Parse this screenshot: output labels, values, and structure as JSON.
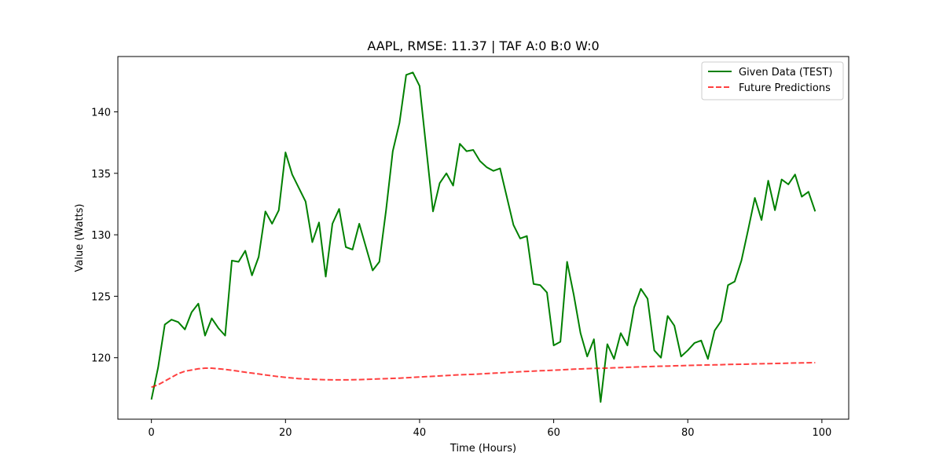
{
  "chart_data": {
    "type": "line",
    "title": "AAPL, RMSE: 11.37 | TAF A:0 B:0 W:0",
    "xlabel": "Time (Hours)",
    "ylabel": "Value (Watts)",
    "xlim": [
      -5,
      104
    ],
    "ylim": [
      115,
      144.5
    ],
    "x_ticks": [
      0,
      20,
      40,
      60,
      80,
      100
    ],
    "y_ticks": [
      120,
      125,
      130,
      135,
      140
    ],
    "grid": false,
    "legend_position": "top-right",
    "series": [
      {
        "name": "Given Data (TEST)",
        "color": "#008000",
        "style": "solid",
        "x": [
          0,
          1,
          2,
          3,
          4,
          5,
          6,
          7,
          8,
          9,
          10,
          11,
          12,
          13,
          14,
          15,
          16,
          17,
          18,
          19,
          20,
          21,
          22,
          23,
          24,
          25,
          26,
          27,
          28,
          29,
          30,
          31,
          32,
          33,
          34,
          35,
          36,
          37,
          38,
          39,
          40,
          41,
          42,
          43,
          44,
          45,
          46,
          47,
          48,
          49,
          50,
          51,
          52,
          53,
          54,
          55,
          56,
          57,
          58,
          59,
          60,
          61,
          62,
          63,
          64,
          65,
          66,
          67,
          68,
          69,
          70,
          71,
          72,
          73,
          74,
          75,
          76,
          77,
          78,
          79,
          80,
          81,
          82,
          83,
          84,
          85,
          86,
          87,
          88,
          89,
          90,
          91,
          92,
          93,
          94,
          95,
          96,
          97,
          98,
          99
        ],
        "values": [
          116.6,
          119.2,
          122.7,
          123.1,
          122.9,
          122.3,
          123.7,
          124.4,
          121.8,
          123.2,
          122.4,
          121.8,
          127.9,
          127.8,
          128.7,
          126.7,
          128.2,
          131.9,
          130.9,
          132.0,
          136.7,
          134.9,
          133.8,
          132.7,
          129.4,
          131.0,
          126.6,
          130.9,
          132.1,
          129.0,
          128.8,
          130.9,
          129.0,
          127.1,
          127.8,
          132.0,
          136.8,
          139.1,
          143.0,
          143.2,
          142.1,
          137.0,
          131.9,
          134.2,
          135.0,
          134.0,
          137.4,
          136.8,
          136.9,
          136.0,
          135.5,
          135.2,
          135.4,
          133.1,
          130.8,
          129.7,
          129.9,
          126.0,
          125.9,
          125.3,
          121.0,
          121.3,
          127.8,
          125.1,
          122.0,
          120.1,
          121.5,
          116.4,
          121.1,
          119.9,
          122.0,
          121.0,
          124.1,
          125.6,
          124.8,
          120.6,
          120.0,
          123.4,
          122.6,
          120.1,
          120.6,
          121.2,
          121.4,
          119.9,
          122.2,
          123.0,
          125.9,
          126.2,
          127.9,
          130.4,
          133.0,
          131.2,
          134.4,
          132.0,
          134.5,
          134.1,
          134.9,
          133.1,
          133.5,
          131.9
        ]
      },
      {
        "name": "Future Predictions",
        "color": "#ff0000",
        "style": "dashed",
        "x": [
          0,
          1,
          2,
          3,
          4,
          5,
          6,
          7,
          8,
          9,
          10,
          11,
          12,
          13,
          14,
          15,
          16,
          17,
          18,
          19,
          20,
          21,
          22,
          23,
          24,
          25,
          26,
          27,
          28,
          29,
          30,
          31,
          32,
          33,
          34,
          35,
          36,
          37,
          38,
          39,
          40,
          41,
          42,
          43,
          44,
          45,
          46,
          47,
          48,
          49,
          50,
          51,
          52,
          53,
          54,
          55,
          56,
          57,
          58,
          59,
          60,
          61,
          62,
          63,
          64,
          65,
          66,
          67,
          68,
          69,
          70,
          71,
          72,
          73,
          74,
          75,
          76,
          77,
          78,
          79,
          80,
          81,
          82,
          83,
          84,
          85,
          86,
          87,
          88,
          89,
          90,
          91,
          92,
          93,
          94,
          95,
          96,
          97,
          98,
          99
        ],
        "values": [
          117.6,
          117.8,
          118.1,
          118.4,
          118.7,
          118.9,
          119.0,
          119.1,
          119.15,
          119.15,
          119.1,
          119.05,
          118.98,
          118.9,
          118.82,
          118.75,
          118.68,
          118.6,
          118.53,
          118.46,
          118.4,
          118.35,
          118.3,
          118.27,
          118.25,
          118.23,
          118.21,
          118.2,
          118.2,
          118.2,
          118.21,
          118.22,
          118.24,
          118.26,
          118.28,
          118.3,
          118.32,
          118.34,
          118.37,
          118.4,
          118.43,
          118.46,
          118.49,
          118.52,
          118.55,
          118.58,
          118.61,
          118.63,
          118.65,
          118.68,
          118.71,
          118.74,
          118.77,
          118.8,
          118.83,
          118.86,
          118.89,
          118.91,
          118.94,
          118.96,
          118.99,
          119.01,
          119.04,
          119.07,
          119.09,
          119.11,
          119.13,
          119.14,
          119.16,
          119.18,
          119.2,
          119.22,
          119.24,
          119.26,
          119.27,
          119.29,
          119.31,
          119.32,
          119.34,
          119.35,
          119.37,
          119.38,
          119.4,
          119.41,
          119.42,
          119.43,
          119.45,
          119.46,
          119.47,
          119.48,
          119.5,
          119.51,
          119.52,
          119.53,
          119.54,
          119.56,
          119.57,
          119.58,
          119.59,
          119.6
        ]
      }
    ]
  }
}
